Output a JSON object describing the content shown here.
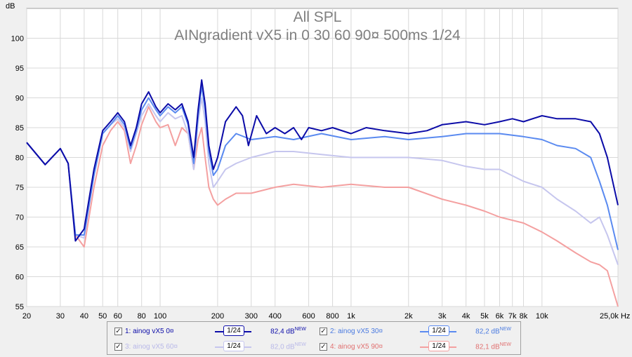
{
  "chart_data": {
    "type": "line",
    "title": "All SPL",
    "subtitle": "AINgradient vX5 in 0 30 60 90¤ 500ms 1/24",
    "ylabel": "dB",
    "xlabel": "Hz",
    "xscale": "log",
    "xlim": [
      20,
      25000
    ],
    "ylim": [
      55,
      105
    ],
    "grid": true,
    "x_ticks": [
      {
        "v": 20,
        "label": "20"
      },
      {
        "v": 30,
        "label": "30"
      },
      {
        "v": 40,
        "label": "40"
      },
      {
        "v": 50,
        "label": "50"
      },
      {
        "v": 60,
        "label": "60"
      },
      {
        "v": 80,
        "label": "80"
      },
      {
        "v": 100,
        "label": "100"
      },
      {
        "v": 200,
        "label": "200"
      },
      {
        "v": 300,
        "label": "300"
      },
      {
        "v": 400,
        "label": "400"
      },
      {
        "v": 600,
        "label": "600"
      },
      {
        "v": 800,
        "label": "800"
      },
      {
        "v": 1000,
        "label": "1k"
      },
      {
        "v": 2000,
        "label": "2k"
      },
      {
        "v": 3000,
        "label": "3k"
      },
      {
        "v": 4000,
        "label": "4k"
      },
      {
        "v": 5000,
        "label": "5k"
      },
      {
        "v": 6000,
        "label": "6k"
      },
      {
        "v": 7000,
        "label": "7k"
      },
      {
        "v": 8000,
        "label": "8k"
      },
      {
        "v": 10000,
        "label": "10k"
      },
      {
        "v": 25000,
        "label": "25,0k Hz"
      }
    ],
    "y_ticks": [
      55,
      60,
      65,
      70,
      75,
      80,
      85,
      90,
      95,
      100
    ],
    "series": [
      {
        "name": "1: ainog vX5 0¤",
        "color": "#0c0ca8",
        "points": [
          [
            20,
            82.5
          ],
          [
            25,
            78.8
          ],
          [
            30,
            81.5
          ],
          [
            33,
            79
          ],
          [
            36,
            66
          ],
          [
            40,
            68
          ],
          [
            45,
            78
          ],
          [
            50,
            84.5
          ],
          [
            55,
            86
          ],
          [
            60,
            87.5
          ],
          [
            65,
            86
          ],
          [
            70,
            82
          ],
          [
            75,
            85
          ],
          [
            80,
            89
          ],
          [
            87,
            91
          ],
          [
            95,
            88.5
          ],
          [
            100,
            87.5
          ],
          [
            110,
            89
          ],
          [
            120,
            88
          ],
          [
            130,
            89
          ],
          [
            140,
            86
          ],
          [
            150,
            80
          ],
          [
            158,
            88
          ],
          [
            165,
            93
          ],
          [
            172,
            89
          ],
          [
            180,
            82
          ],
          [
            190,
            78
          ],
          [
            200,
            80
          ],
          [
            220,
            86
          ],
          [
            250,
            88.5
          ],
          [
            270,
            87
          ],
          [
            290,
            82
          ],
          [
            320,
            87
          ],
          [
            360,
            84
          ],
          [
            400,
            85
          ],
          [
            450,
            84
          ],
          [
            500,
            85
          ],
          [
            550,
            83
          ],
          [
            600,
            85
          ],
          [
            700,
            84.5
          ],
          [
            800,
            85
          ],
          [
            1000,
            84
          ],
          [
            1200,
            85
          ],
          [
            1500,
            84.5
          ],
          [
            2000,
            84
          ],
          [
            2500,
            84.5
          ],
          [
            3000,
            85.5
          ],
          [
            4000,
            86
          ],
          [
            5000,
            85.5
          ],
          [
            6000,
            86
          ],
          [
            7000,
            86.5
          ],
          [
            8000,
            86
          ],
          [
            10000,
            87
          ],
          [
            12000,
            86.5
          ],
          [
            15000,
            86.5
          ],
          [
            18000,
            86
          ],
          [
            20000,
            84
          ],
          [
            22000,
            80
          ],
          [
            25000,
            72
          ]
        ]
      },
      {
        "name": "2: ainog vX5 30¤",
        "color": "#5a8af0",
        "points": [
          [
            20,
            82.5
          ],
          [
            25,
            78.8
          ],
          [
            30,
            81.5
          ],
          [
            33,
            79
          ],
          [
            36,
            67
          ],
          [
            40,
            67
          ],
          [
            45,
            77
          ],
          [
            50,
            84
          ],
          [
            55,
            85.5
          ],
          [
            60,
            87
          ],
          [
            65,
            85.5
          ],
          [
            70,
            81.5
          ],
          [
            75,
            84.5
          ],
          [
            80,
            88
          ],
          [
            87,
            90
          ],
          [
            95,
            88
          ],
          [
            100,
            87
          ],
          [
            110,
            88.5
          ],
          [
            120,
            87.5
          ],
          [
            130,
            88.5
          ],
          [
            140,
            85.5
          ],
          [
            150,
            79
          ],
          [
            158,
            87
          ],
          [
            165,
            92
          ],
          [
            172,
            88
          ],
          [
            180,
            81
          ],
          [
            190,
            77
          ],
          [
            200,
            78
          ],
          [
            220,
            82
          ],
          [
            250,
            84
          ],
          [
            300,
            83
          ],
          [
            400,
            83.5
          ],
          [
            500,
            83
          ],
          [
            700,
            84
          ],
          [
            1000,
            83
          ],
          [
            1500,
            83.5
          ],
          [
            2000,
            83
          ],
          [
            3000,
            83.5
          ],
          [
            4000,
            84
          ],
          [
            5000,
            84
          ],
          [
            6000,
            84
          ],
          [
            8000,
            83.5
          ],
          [
            10000,
            83
          ],
          [
            12000,
            82
          ],
          [
            15000,
            81.5
          ],
          [
            18000,
            80
          ],
          [
            20000,
            76
          ],
          [
            22000,
            72
          ],
          [
            25000,
            64.5
          ]
        ]
      },
      {
        "name": "3: ainog vX5 60¤",
        "color": "#c6c6ee",
        "points": [
          [
            20,
            82.5
          ],
          [
            25,
            78.8
          ],
          [
            30,
            81.5
          ],
          [
            33,
            79
          ],
          [
            36,
            67
          ],
          [
            40,
            66.5
          ],
          [
            45,
            77
          ],
          [
            50,
            84
          ],
          [
            55,
            85.5
          ],
          [
            60,
            86.5
          ],
          [
            65,
            85
          ],
          [
            70,
            81
          ],
          [
            75,
            84
          ],
          [
            80,
            87
          ],
          [
            87,
            89
          ],
          [
            95,
            87
          ],
          [
            100,
            86
          ],
          [
            110,
            87.5
          ],
          [
            120,
            86.5
          ],
          [
            130,
            87
          ],
          [
            140,
            84
          ],
          [
            150,
            78
          ],
          [
            158,
            86
          ],
          [
            165,
            90
          ],
          [
            172,
            86
          ],
          [
            180,
            79
          ],
          [
            190,
            75
          ],
          [
            200,
            76
          ],
          [
            220,
            78
          ],
          [
            250,
            79
          ],
          [
            300,
            80
          ],
          [
            400,
            81
          ],
          [
            500,
            81
          ],
          [
            700,
            80.5
          ],
          [
            1000,
            80
          ],
          [
            1500,
            80
          ],
          [
            2000,
            80
          ],
          [
            3000,
            79.5
          ],
          [
            4000,
            78.5
          ],
          [
            5000,
            78
          ],
          [
            6000,
            78
          ],
          [
            8000,
            76
          ],
          [
            10000,
            75
          ],
          [
            12000,
            73
          ],
          [
            15000,
            71
          ],
          [
            18000,
            69
          ],
          [
            20000,
            70
          ],
          [
            22000,
            67
          ],
          [
            25000,
            62
          ]
        ]
      },
      {
        "name": "4: ainog vX5 90¤",
        "color": "#f4a0a0",
        "points": [
          [
            20,
            82.5
          ],
          [
            25,
            78.8
          ],
          [
            30,
            81.5
          ],
          [
            33,
            79
          ],
          [
            36,
            67
          ],
          [
            40,
            65
          ],
          [
            45,
            75
          ],
          [
            50,
            82
          ],
          [
            55,
            84.5
          ],
          [
            60,
            86
          ],
          [
            65,
            84.5
          ],
          [
            70,
            79
          ],
          [
            75,
            82
          ],
          [
            80,
            85.5
          ],
          [
            87,
            88.5
          ],
          [
            95,
            86
          ],
          [
            100,
            85
          ],
          [
            110,
            85.5
          ],
          [
            120,
            82
          ],
          [
            130,
            85
          ],
          [
            140,
            84
          ],
          [
            150,
            78
          ],
          [
            158,
            83
          ],
          [
            165,
            85
          ],
          [
            172,
            80
          ],
          [
            180,
            75
          ],
          [
            190,
            73
          ],
          [
            200,
            72
          ],
          [
            220,
            73
          ],
          [
            250,
            74
          ],
          [
            300,
            74
          ],
          [
            400,
            75
          ],
          [
            500,
            75.5
          ],
          [
            700,
            75
          ],
          [
            1000,
            75.5
          ],
          [
            1500,
            75
          ],
          [
            2000,
            75
          ],
          [
            3000,
            73
          ],
          [
            4000,
            72
          ],
          [
            5000,
            71
          ],
          [
            6000,
            70
          ],
          [
            8000,
            69
          ],
          [
            10000,
            67.5
          ],
          [
            12000,
            66
          ],
          [
            15000,
            64
          ],
          [
            18000,
            62.5
          ],
          [
            20000,
            62
          ],
          [
            22000,
            61
          ],
          [
            25000,
            55
          ]
        ]
      }
    ],
    "legend": {
      "placement": "bottom",
      "items": [
        {
          "label": "1: ainog vX5 0¤",
          "smoothing": "1/24",
          "level": "82,4 dB",
          "tag": "NEW",
          "checked": true,
          "color": "#0c0ca8",
          "text_color": "#0c0ca8"
        },
        {
          "label": "2: ainog vX5 30¤",
          "smoothing": "1/24",
          "level": "82,2 dB",
          "tag": "NEW",
          "checked": true,
          "color": "#5a8af0",
          "text_color": "#4a7ae0"
        },
        {
          "label": "3: ainog vX5 60¤",
          "smoothing": "1/24",
          "level": "82,0 dB",
          "tag": "NEW",
          "checked": true,
          "color": "#c6c6ee",
          "text_color": "#b8b8e8"
        },
        {
          "label": "4: ainog vX5 90¤",
          "smoothing": "1/24",
          "level": "82,1 dB",
          "tag": "NEW",
          "checked": true,
          "color": "#f4a0a0",
          "text_color": "#e07070"
        }
      ]
    }
  }
}
